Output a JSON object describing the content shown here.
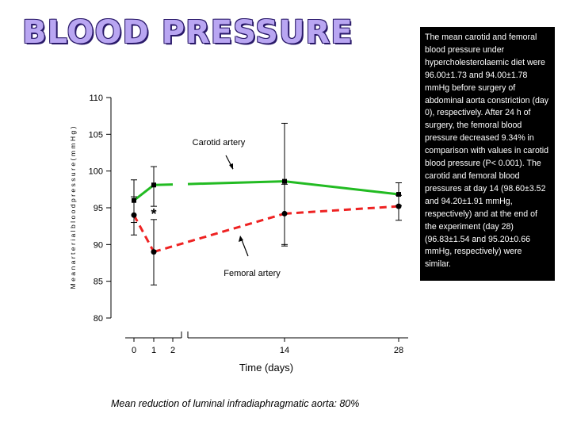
{
  "title": "BLOOD PRESSURE",
  "note": "The mean carotid and femoral blood pressure under hypercholesterolaemic diet were 96.00±1.73 and 94.00±1.78 mmHg before surgery of abdominal aorta constriction (day 0), respectively. After 24 h of surgery, the femoral blood pressure decreased 9.34% in comparison with values in carotid blood pressure (P< 0.001). The carotid and femoral blood pressures at day 14 (98.60±3.52 and 94.20±1.91 mmHg, respectively) and at the end of the experiment (day 28) (96.83±1.54 and 95.20±0.66 mmHg, respectively) were similar.",
  "footnote": "Mean reduction of luminal infradiaphragmatic aorta: 80%",
  "colors": {
    "carotid": "#22bb22",
    "femoral": "#ee2222",
    "title": "#b9a6f2"
  },
  "chart_data": {
    "type": "line",
    "xlabel": "Time (days)",
    "ylabel": "M e a n   a r t e r i a l   b l o o d   p r e s s u r e   ( m m H g )",
    "ylim": [
      80,
      110
    ],
    "yticks": [
      80,
      85,
      90,
      95,
      100,
      105,
      110
    ],
    "xticks": [
      "0",
      "1",
      "2",
      "14",
      "28"
    ],
    "x_axis_break": "between 2 and 14",
    "grid": false,
    "annotations": [
      {
        "text": "Carotid artery",
        "series": "Carotid artery"
      },
      {
        "text": "Femoral artery",
        "series": "Femoral artery"
      },
      {
        "text": "*",
        "at_day": 1
      }
    ],
    "series": [
      {
        "name": "Carotid artery",
        "color": "#22bb22",
        "style": "solid",
        "marker": "square",
        "x": [
          0,
          1,
          14,
          28
        ],
        "y": [
          96.0,
          98.1,
          98.6,
          96.83
        ],
        "err_low": [
          93.0,
          95.2,
          90.0,
          95.3
        ],
        "err_high": [
          98.8,
          100.6,
          106.5,
          98.4
        ]
      },
      {
        "name": "Femoral artery",
        "color": "#ee2222",
        "style": "dashed",
        "marker": "circle",
        "x": [
          0,
          1,
          14,
          28
        ],
        "y": [
          94.0,
          89.0,
          94.2,
          95.2
        ],
        "err_low": [
          91.3,
          84.5,
          89.8,
          93.3
        ],
        "err_high": [
          96.5,
          93.4,
          98.2,
          96.7
        ]
      }
    ]
  }
}
